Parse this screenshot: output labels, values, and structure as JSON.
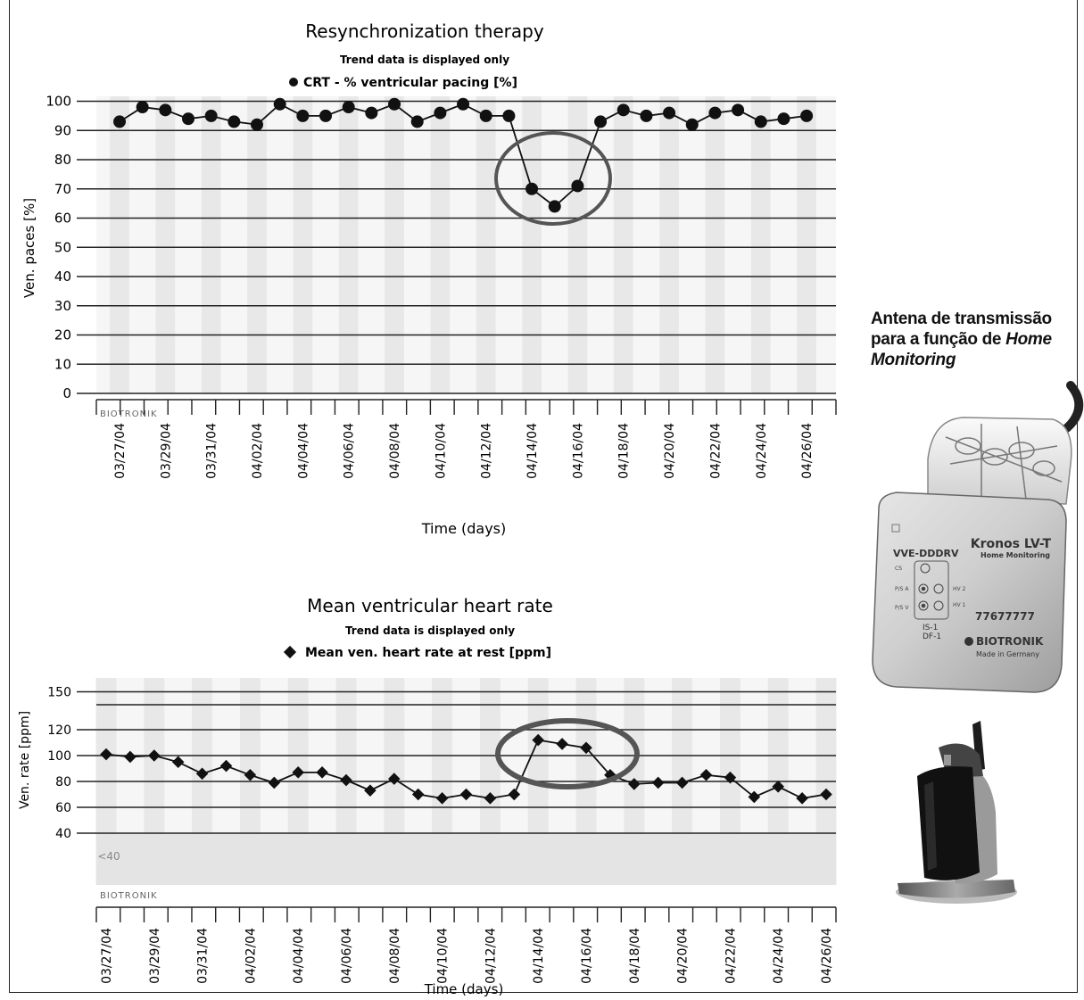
{
  "charts": [
    {
      "title": "Resynchronization therapy",
      "subtitle": "Trend data is displayed only",
      "legend": "CRT - % ventricular pacing [%]",
      "ylabel": "Ven. paces [%]",
      "xlabel": "Time (days)",
      "brand": "BIOTRONIK"
    },
    {
      "title": "Mean ventricular heart rate",
      "subtitle": "Trend data is displayed only",
      "legend": "Mean ven. heart rate at rest [ppm]",
      "ylabel": "Ven. rate [ppm]",
      "xlabel": "Time (days)",
      "brand": "BIOTRONIK"
    }
  ],
  "annotation": {
    "line1": "Antena de transmissão",
    "line2_prefix": "para a função de ",
    "line2_italic": "Home",
    "line3_italic": "Monitoring"
  },
  "device": {
    "model": "Kronos LV-T",
    "mode": "VVE-DDDRV",
    "feature": "Home Monitoring",
    "serial": "77677777",
    "brand": "BIOTRONIK",
    "origin": "Made in Germany",
    "header_labels": [
      "CS",
      "P/S A",
      "P/S V",
      "HV 2",
      "HV 1"
    ],
    "connector": [
      "IS-1",
      "DF-1"
    ]
  },
  "chart_data": [
    {
      "type": "line",
      "title": "Resynchronization therapy",
      "series": [
        {
          "name": "CRT - % ventricular pacing [%]",
          "marker": "circle",
          "x": [
            "03/27/04",
            "03/28/04",
            "03/29/04",
            "03/30/04",
            "03/31/04",
            "04/01/04",
            "04/02/04",
            "04/03/04",
            "04/04/04",
            "04/05/04",
            "04/06/04",
            "04/07/04",
            "04/08/04",
            "04/09/04",
            "04/10/04",
            "04/11/04",
            "04/12/04",
            "04/13/04",
            "04/14/04",
            "04/15/04",
            "04/16/04",
            "04/17/04",
            "04/18/04",
            "04/19/04",
            "04/20/04",
            "04/21/04",
            "04/22/04",
            "04/23/04",
            "04/24/04",
            "04/25/04",
            "04/26/04"
          ],
          "values": [
            93,
            98,
            97,
            94,
            95,
            93,
            92,
            99,
            95,
            95,
            98,
            96,
            99,
            93,
            96,
            99,
            95,
            95,
            70,
            64,
            71,
            93,
            97,
            95,
            96,
            92,
            96,
            97,
            93,
            94,
            95
          ]
        }
      ],
      "xlabel": "Time (days)",
      "ylabel": "Ven. paces [%]",
      "xticklabels": [
        "03/27/04",
        "03/29/04",
        "03/31/04",
        "04/02/04",
        "04/04/04",
        "04/06/04",
        "04/08/04",
        "04/10/04",
        "04/12/04",
        "04/14/04",
        "04/16/04",
        "04/18/04",
        "04/20/04",
        "04/22/04",
        "04/24/04",
        "04/26/04"
      ],
      "yticks": [
        0,
        10,
        20,
        30,
        40,
        50,
        60,
        70,
        80,
        90,
        100
      ],
      "ylim": [
        0,
        100
      ],
      "grid": true,
      "legend": "top"
    },
    {
      "type": "line",
      "title": "Mean ventricular heart rate",
      "series": [
        {
          "name": "Mean ven. heart rate at rest [ppm]",
          "marker": "diamond",
          "x": [
            "03/27/04",
            "03/28/04",
            "03/29/04",
            "03/30/04",
            "03/31/04",
            "04/01/04",
            "04/02/04",
            "04/03/04",
            "04/04/04",
            "04/05/04",
            "04/06/04",
            "04/07/04",
            "04/08/04",
            "04/09/04",
            "04/10/04",
            "04/11/04",
            "04/12/04",
            "04/13/04",
            "04/14/04",
            "04/15/04",
            "04/16/04",
            "04/17/04",
            "04/18/04",
            "04/19/04",
            "04/20/04",
            "04/21/04",
            "04/22/04",
            "04/23/04",
            "04/24/04",
            "04/25/04",
            "04/26/04"
          ],
          "values": [
            101,
            99,
            100,
            95,
            86,
            92,
            85,
            79,
            87,
            87,
            81,
            73,
            82,
            70,
            67,
            70,
            67,
            70,
            112,
            109,
            106,
            85,
            78,
            79,
            79,
            85,
            83,
            68,
            76,
            67,
            70
          ]
        }
      ],
      "xlabel": "Time (days)",
      "ylabel": "Ven. rate [ppm]",
      "xticklabels": [
        "03/27/04",
        "03/29/04",
        "03/31/04",
        "04/02/04",
        "04/04/04",
        "04/06/04",
        "04/08/04",
        "04/10/04",
        "04/12/04",
        "04/14/04",
        "04/16/04",
        "04/18/04",
        "04/20/04",
        "04/22/04",
        "04/24/04",
        "04/26/04"
      ],
      "yticks": [
        40,
        60,
        80,
        100,
        120,
        150
      ],
      "extra_label": "<40",
      "ylim": [
        25,
        150
      ],
      "grid": true,
      "legend": "top"
    }
  ]
}
